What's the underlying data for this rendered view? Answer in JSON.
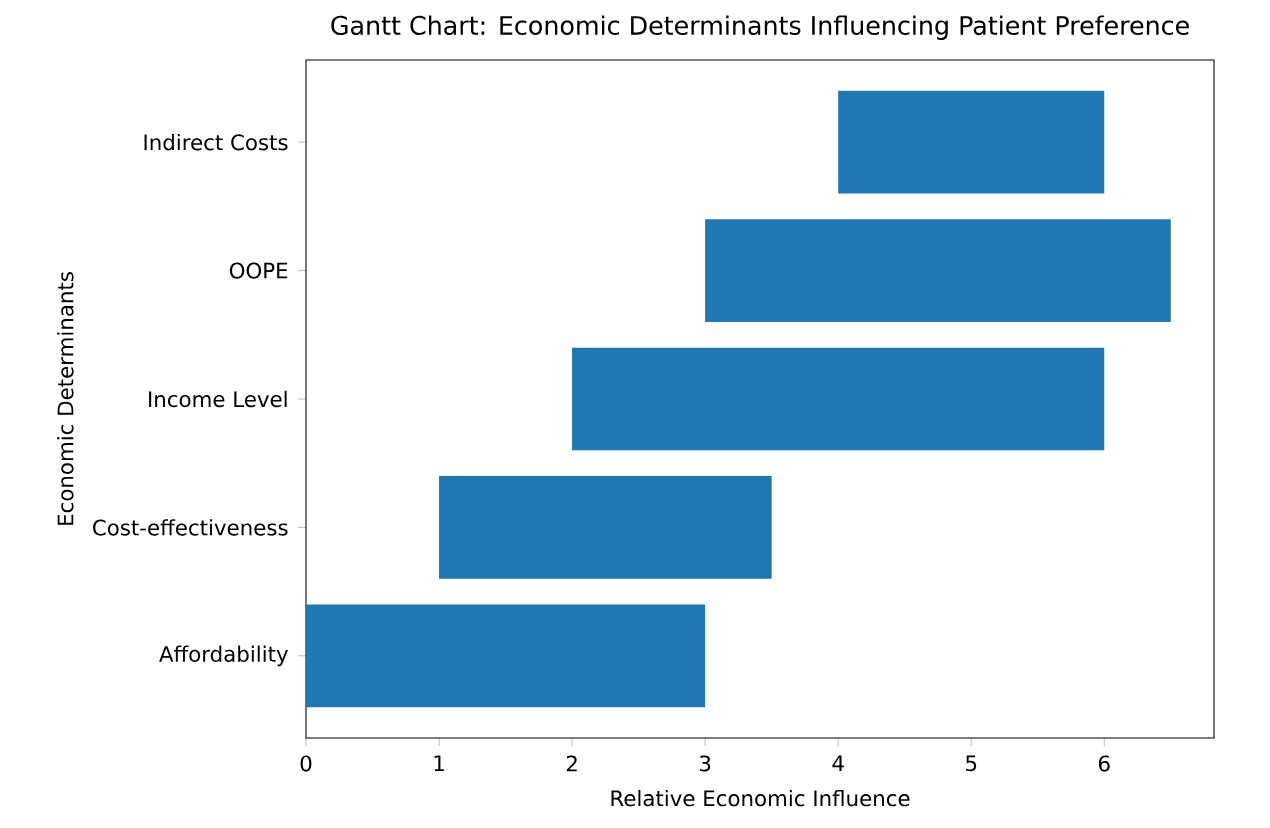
{
  "chart_data": {
    "type": "bar",
    "orientation": "horizontal",
    "title": "Gantt Chart: Economic Determinants Influencing Patient Preference",
    "xlabel": "Relative Economic Influence",
    "ylabel": "Economic Determinants",
    "categories": [
      "Indirect Costs",
      "OOPE",
      "Income Level",
      "Cost-effectiveness",
      "Affordability"
    ],
    "base": [
      4,
      3,
      2,
      1,
      0
    ],
    "values": [
      2,
      3.5,
      4,
      2.5,
      3
    ],
    "color": "#1f77b4",
    "xlim": [
      0,
      6.825
    ],
    "xticks": [
      0,
      1,
      2,
      3,
      4,
      5,
      6
    ]
  }
}
